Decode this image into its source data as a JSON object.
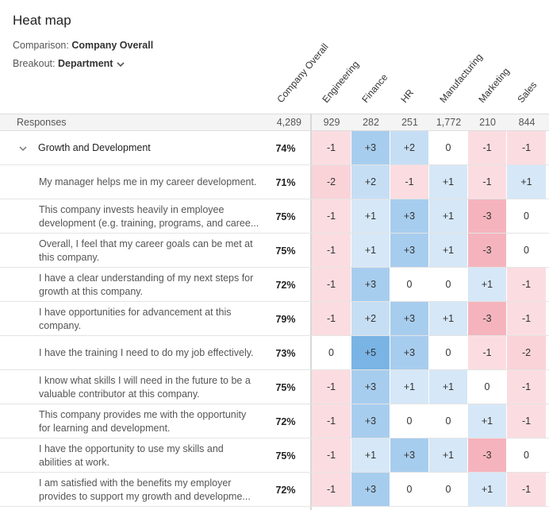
{
  "header": {
    "title": "Heat map",
    "comparison_label": "Comparison:",
    "comparison_value": "Company Overall",
    "breakout_label": "Breakout:",
    "breakout_value": "Department"
  },
  "table": {
    "columns": [
      "Company Overall",
      "Engineering",
      "Finance",
      "HR",
      "Manufacturing",
      "Marketing",
      "Sales"
    ],
    "responses": {
      "label": "Responses",
      "values": [
        "4,289",
        "929",
        "282",
        "251",
        "1,772",
        "210",
        "844"
      ]
    },
    "group": {
      "label": "Growth and Development",
      "score": "74%",
      "cells": [
        "-1",
        "+3",
        "+2",
        "0",
        "-1",
        "-1"
      ]
    },
    "rows": [
      {
        "lines": [
          "My manager helps me in my career development."
        ],
        "score": "71%",
        "cells": [
          "-2",
          "+2",
          "-1",
          "+1",
          "-1",
          "+1"
        ]
      },
      {
        "lines": [
          "This company invests heavily in employee",
          "development (e.g. training, programs, and caree..."
        ],
        "score": "75%",
        "cells": [
          "-1",
          "+1",
          "+3",
          "+1",
          "-3",
          "0"
        ]
      },
      {
        "lines": [
          "Overall, I feel that my career goals can be met at",
          "this company."
        ],
        "score": "75%",
        "cells": [
          "-1",
          "+1",
          "+3",
          "+1",
          "-3",
          "0"
        ]
      },
      {
        "lines": [
          "I have a clear understanding of my next steps for",
          "growth at this company."
        ],
        "score": "72%",
        "cells": [
          "-1",
          "+3",
          "0",
          "0",
          "+1",
          "-1"
        ]
      },
      {
        "lines": [
          "I have opportunities for advancement at this",
          "company."
        ],
        "score": "79%",
        "cells": [
          "-1",
          "+2",
          "+3",
          "+1",
          "-3",
          "-1"
        ]
      },
      {
        "lines": [
          "I have the training I need to do my job effectively."
        ],
        "score": "73%",
        "cells": [
          "0",
          "+5",
          "+3",
          "0",
          "-1",
          "-2"
        ]
      },
      {
        "lines": [
          "I know what skills I will need in the future to be a",
          "valuable contributor at this company."
        ],
        "score": "75%",
        "cells": [
          "-1",
          "+3",
          "+1",
          "+1",
          "0",
          "-1"
        ]
      },
      {
        "lines": [
          "This company provides me with the opportunity",
          "for learning and development."
        ],
        "score": "72%",
        "cells": [
          "-1",
          "+3",
          "0",
          "0",
          "+1",
          "-1"
        ]
      },
      {
        "lines": [
          "I have the opportunity to use my skills and",
          "abilities at work."
        ],
        "score": "75%",
        "cells": [
          "-1",
          "+1",
          "+3",
          "+1",
          "-3",
          "0"
        ]
      },
      {
        "lines": [
          "I am satisfied with the benefits my employer",
          "provides to support my growth and developme..."
        ],
        "score": "72%",
        "cells": [
          "-1",
          "+3",
          "0",
          "0",
          "+1",
          "-1"
        ]
      }
    ]
  }
}
